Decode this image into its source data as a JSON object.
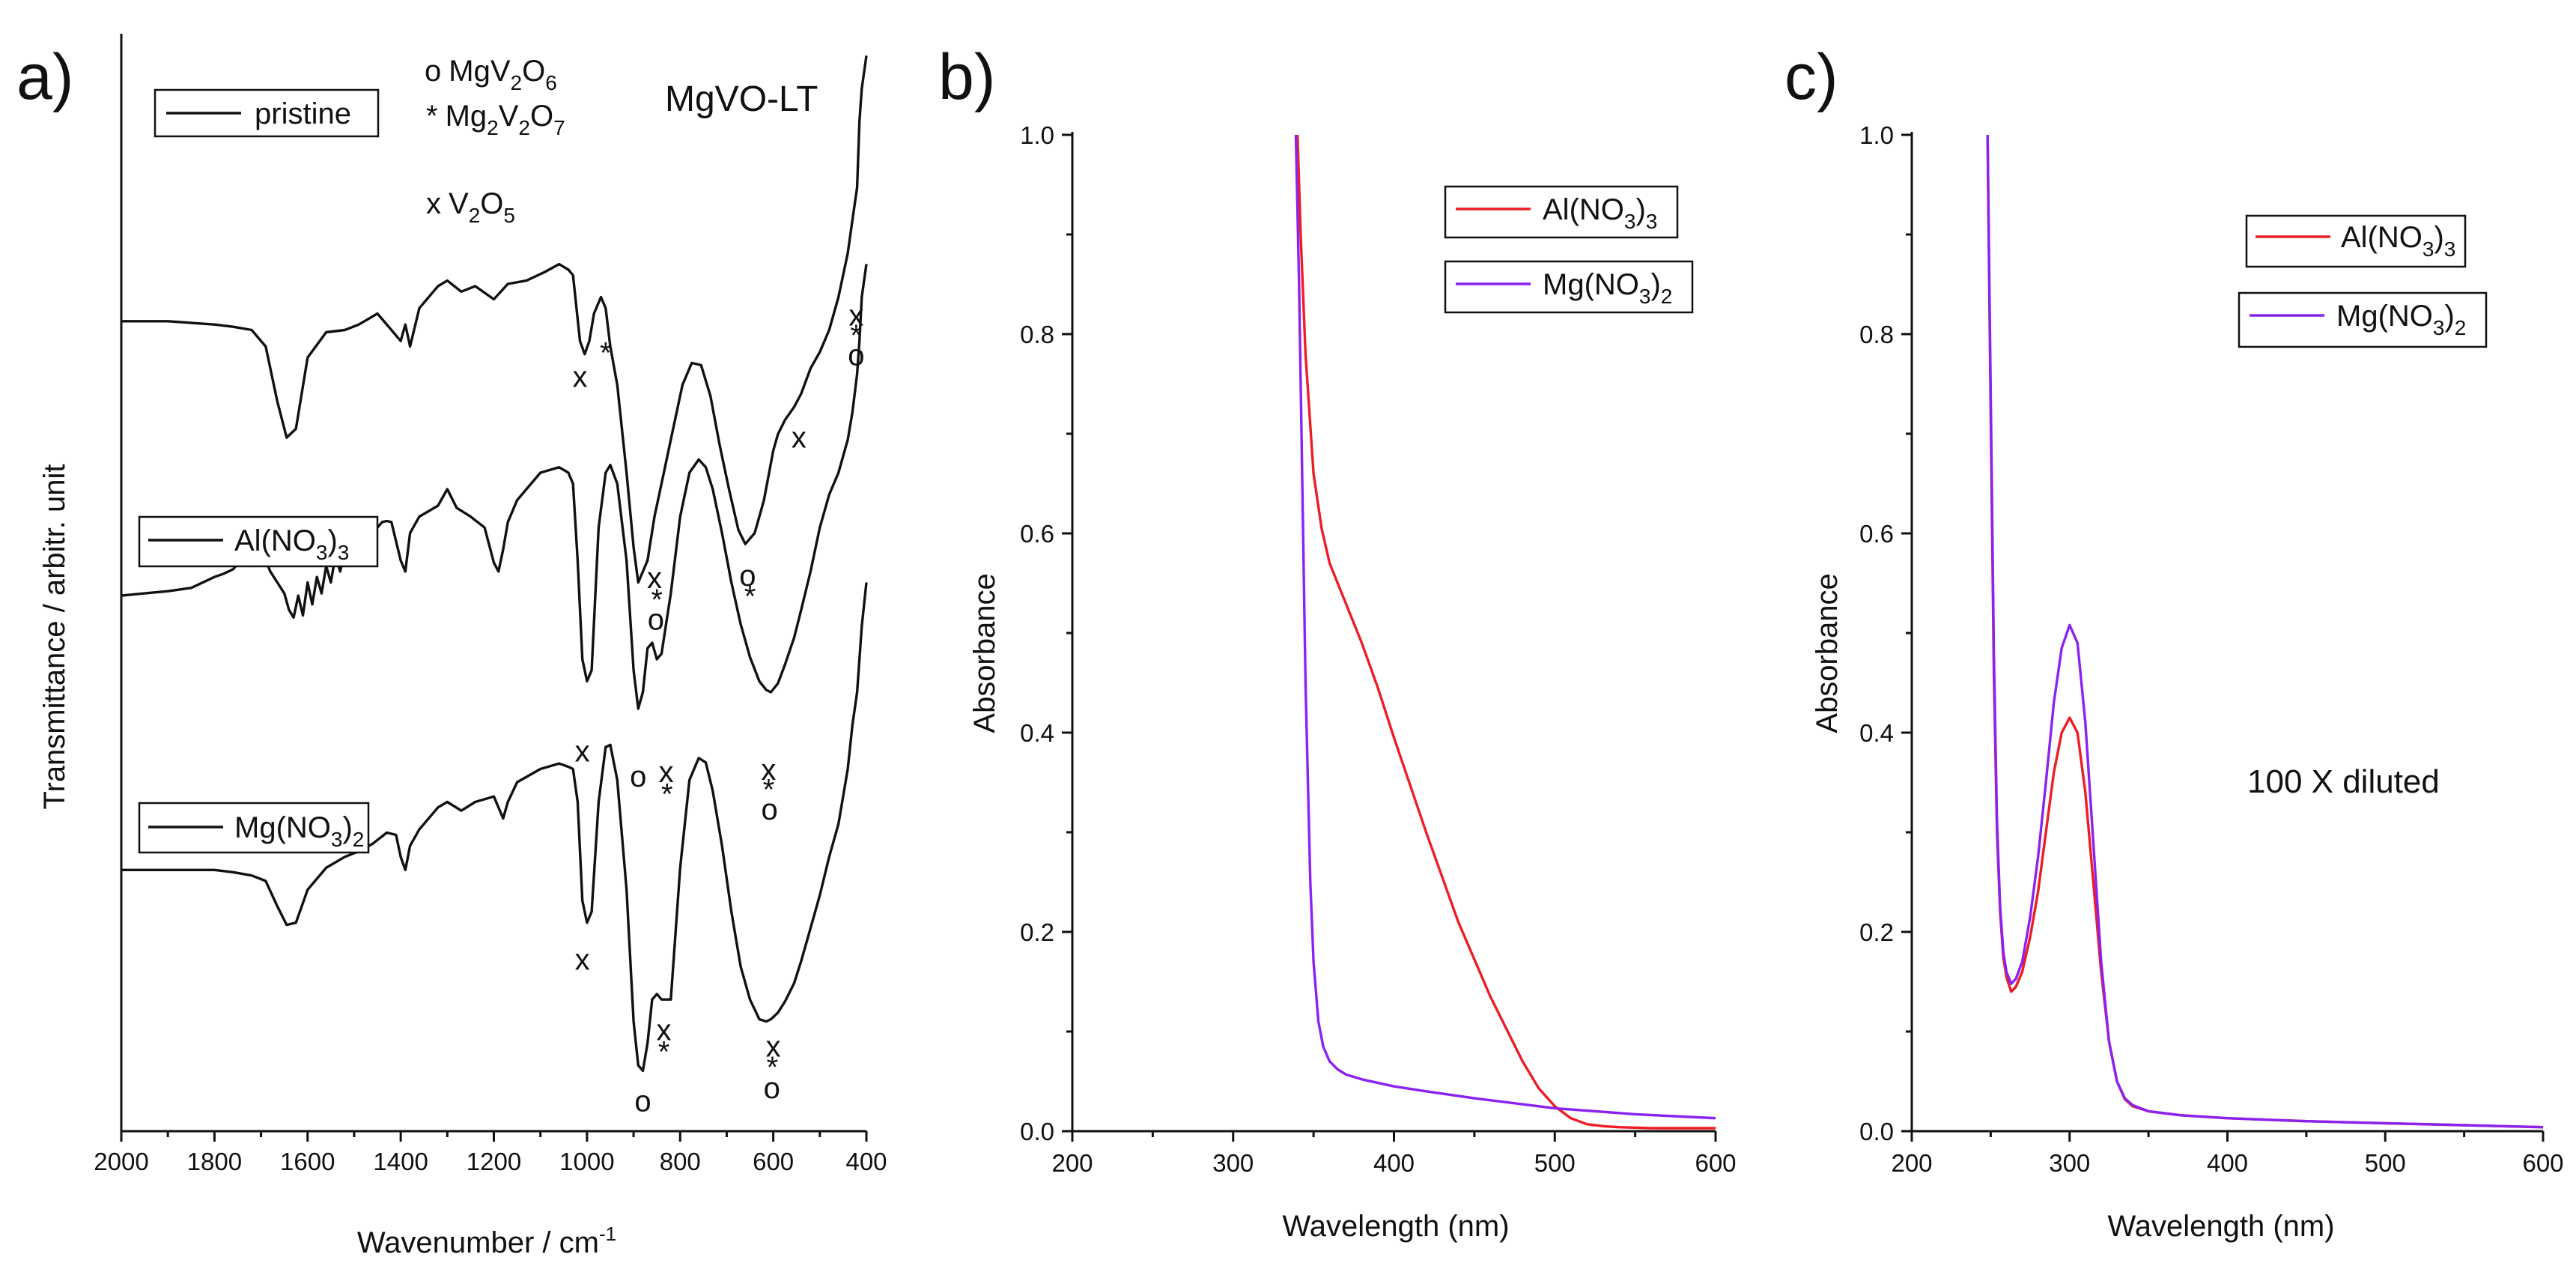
{
  "colors": {
    "red": "#ee1c25",
    "violet": "#8b22f0",
    "black": "#111111"
  },
  "chart_data": [
    {
      "panel": "a)",
      "type": "line",
      "title": "MgVO-LT",
      "xlabel": "Wavenumber / cm",
      "xlabel_sup": "-1",
      "ylabel": "Transmittance / arbitr. unit",
      "xlim": [
        2000,
        400
      ],
      "ylim": [
        0,
        1
      ],
      "xticks": [
        2000,
        1800,
        1600,
        1400,
        1200,
        1000,
        800,
        600,
        400
      ],
      "phase_legend": [
        {
          "symbol": "o",
          "label": "MgV2O6"
        },
        {
          "symbol": "*",
          "label": "Mg2V2O7"
        },
        {
          "symbol": "x",
          "label": "V2O5"
        }
      ],
      "series": [
        {
          "name": "pristine",
          "x": [
            2000,
            1900,
            1800,
            1760,
            1720,
            1690,
            1665,
            1645,
            1625,
            1600,
            1560,
            1520,
            1490,
            1450,
            1420,
            1400,
            1390,
            1380,
            1360,
            1320,
            1300,
            1270,
            1240,
            1200,
            1170,
            1130,
            1090,
            1060,
            1040,
            1030,
            1015,
            1005,
            995,
            985,
            970,
            960,
            950,
            935,
            915,
            900,
            890,
            880,
            870,
            855,
            835,
            815,
            795,
            775,
            755,
            735,
            715,
            695,
            675,
            660,
            640,
            620,
            600,
            590,
            575,
            555,
            540,
            520,
            500,
            480,
            460,
            440,
            430,
            420,
            415,
            410,
            400
          ],
          "y": [
            0.738,
            0.738,
            0.735,
            0.733,
            0.73,
            0.715,
            0.665,
            0.632,
            0.64,
            0.705,
            0.728,
            0.73,
            0.735,
            0.745,
            0.73,
            0.72,
            0.735,
            0.715,
            0.75,
            0.77,
            0.775,
            0.765,
            0.77,
            0.758,
            0.772,
            0.775,
            0.783,
            0.79,
            0.785,
            0.78,
            0.72,
            0.708,
            0.72,
            0.745,
            0.76,
            0.75,
            0.715,
            0.68,
            0.6,
            0.532,
            0.5,
            0.51,
            0.52,
            0.56,
            0.6,
            0.64,
            0.68,
            0.7,
            0.698,
            0.67,
            0.625,
            0.585,
            0.548,
            0.535,
            0.545,
            0.575,
            0.62,
            0.635,
            0.648,
            0.66,
            0.672,
            0.695,
            0.71,
            0.73,
            0.76,
            0.8,
            0.83,
            0.86,
            0.92,
            0.95,
            0.98
          ]
        },
        {
          "name": "Al(NO3)3",
          "x": [
            2000,
            1950,
            1900,
            1850,
            1800,
            1780,
            1760,
            1740,
            1720,
            1700,
            1680,
            1665,
            1650,
            1640,
            1630,
            1620,
            1610,
            1600,
            1590,
            1580,
            1570,
            1560,
            1550,
            1540,
            1530,
            1520,
            1510,
            1500,
            1490,
            1480,
            1470,
            1460,
            1450,
            1440,
            1430,
            1420,
            1400,
            1390,
            1380,
            1360,
            1320,
            1300,
            1280,
            1250,
            1220,
            1200,
            1190,
            1180,
            1170,
            1150,
            1100,
            1060,
            1040,
            1030,
            1020,
            1010,
            1000,
            990,
            975,
            960,
            950,
            935,
            915,
            900,
            890,
            880,
            870,
            860,
            850,
            840,
            820,
            800,
            780,
            760,
            745,
            730,
            710,
            690,
            670,
            650,
            630,
            615,
            605,
            590,
            575,
            555,
            540,
            520,
            500,
            480,
            460,
            440,
            430,
            420,
            415,
            410,
            400
          ],
          "y": [
            0.488,
            0.49,
            0.492,
            0.495,
            0.505,
            0.508,
            0.512,
            0.522,
            0.515,
            0.53,
            0.51,
            0.5,
            0.49,
            0.475,
            0.468,
            0.488,
            0.47,
            0.5,
            0.48,
            0.505,
            0.49,
            0.515,
            0.5,
            0.525,
            0.51,
            0.53,
            0.515,
            0.54,
            0.525,
            0.55,
            0.54,
            0.556,
            0.55,
            0.555,
            0.556,
            0.555,
            0.52,
            0.51,
            0.545,
            0.56,
            0.57,
            0.585,
            0.568,
            0.56,
            0.55,
            0.518,
            0.51,
            0.53,
            0.555,
            0.575,
            0.6,
            0.605,
            0.6,
            0.59,
            0.52,
            0.43,
            0.41,
            0.42,
            0.55,
            0.6,
            0.607,
            0.59,
            0.52,
            0.42,
            0.385,
            0.4,
            0.44,
            0.445,
            0.43,
            0.435,
            0.49,
            0.56,
            0.6,
            0.612,
            0.605,
            0.585,
            0.545,
            0.5,
            0.462,
            0.432,
            0.41,
            0.402,
            0.4,
            0.408,
            0.425,
            0.45,
            0.475,
            0.51,
            0.55,
            0.58,
            0.6,
            0.63,
            0.655,
            0.69,
            0.72,
            0.76,
            0.79
          ]
        },
        {
          "name": "Mg(NO3)2",
          "x": [
            2000,
            1900,
            1800,
            1760,
            1720,
            1690,
            1665,
            1645,
            1625,
            1600,
            1560,
            1520,
            1490,
            1460,
            1430,
            1410,
            1400,
            1390,
            1380,
            1360,
            1320,
            1300,
            1270,
            1240,
            1200,
            1180,
            1170,
            1150,
            1100,
            1060,
            1040,
            1030,
            1020,
            1010,
            1000,
            990,
            975,
            960,
            950,
            935,
            915,
            900,
            890,
            880,
            870,
            860,
            850,
            840,
            820,
            800,
            780,
            760,
            745,
            730,
            710,
            690,
            670,
            650,
            630,
            615,
            605,
            590,
            575,
            555,
            540,
            520,
            500,
            480,
            460,
            440,
            430,
            420,
            415,
            410,
            400
          ],
          "y": [
            0.238,
            0.238,
            0.238,
            0.236,
            0.233,
            0.228,
            0.205,
            0.188,
            0.19,
            0.22,
            0.24,
            0.25,
            0.255,
            0.262,
            0.272,
            0.27,
            0.25,
            0.238,
            0.26,
            0.275,
            0.295,
            0.3,
            0.292,
            0.3,
            0.305,
            0.285,
            0.3,
            0.318,
            0.33,
            0.335,
            0.332,
            0.33,
            0.3,
            0.21,
            0.19,
            0.2,
            0.3,
            0.35,
            0.352,
            0.32,
            0.22,
            0.1,
            0.06,
            0.055,
            0.08,
            0.12,
            0.125,
            0.12,
            0.12,
            0.24,
            0.32,
            0.34,
            0.336,
            0.31,
            0.26,
            0.2,
            0.15,
            0.12,
            0.102,
            0.1,
            0.102,
            0.108,
            0.118,
            0.135,
            0.155,
            0.185,
            0.215,
            0.25,
            0.28,
            0.33,
            0.37,
            0.4,
            0.43,
            0.46,
            0.5
          ]
        }
      ],
      "annotations": [
        {
          "text": "x",
          "x": 1015,
          "y": 0.678
        },
        {
          "text": "*",
          "x": 960,
          "y": 0.7
        },
        {
          "text": "x",
          "x": 855,
          "y": 0.495
        },
        {
          "text": "*",
          "x": 850,
          "y": 0.475
        },
        {
          "text": "o",
          "x": 852,
          "y": 0.457
        },
        {
          "text": "o",
          "x": 655,
          "y": 0.497
        },
        {
          "text": "*",
          "x": 650,
          "y": 0.478
        },
        {
          "text": "x",
          "x": 545,
          "y": 0.623
        },
        {
          "text": "x",
          "x": 422,
          "y": 0.734
        },
        {
          "text": "*",
          "x": 422,
          "y": 0.716
        },
        {
          "text": "o",
          "x": 422,
          "y": 0.698
        },
        {
          "text": "x",
          "x": 1010,
          "y": 0.337
        },
        {
          "text": "o",
          "x": 890,
          "y": 0.314
        },
        {
          "text": "x",
          "x": 830,
          "y": 0.318
        },
        {
          "text": "*",
          "x": 828,
          "y": 0.298
        },
        {
          "text": "x",
          "x": 610,
          "y": 0.32
        },
        {
          "text": "*",
          "x": 610,
          "y": 0.302
        },
        {
          "text": "o",
          "x": 608,
          "y": 0.284
        },
        {
          "text": "x",
          "x": 1010,
          "y": 0.147
        },
        {
          "text": "x",
          "x": 835,
          "y": 0.083
        },
        {
          "text": "*",
          "x": 835,
          "y": 0.063
        },
        {
          "text": "o",
          "x": 880,
          "y": 0.018
        },
        {
          "text": "x",
          "x": 600,
          "y": 0.068
        },
        {
          "text": "*",
          "x": 602,
          "y": 0.049
        },
        {
          "text": "o",
          "x": 603,
          "y": 0.03
        }
      ]
    },
    {
      "panel": "b)",
      "type": "line",
      "xlabel": "Wavelength (nm)",
      "ylabel": "Absorbance",
      "xlim": [
        200,
        600
      ],
      "ylim": [
        0,
        1
      ],
      "xticks": [
        200,
        300,
        400,
        500,
        600
      ],
      "yticks": [
        0.0,
        0.2,
        0.4,
        0.6,
        0.8,
        1.0
      ],
      "series": [
        {
          "name": "Al(NO3)3",
          "color": "#ee1c25",
          "x": [
            340,
            342,
            345,
            350,
            355,
            360,
            370,
            380,
            390,
            400,
            420,
            440,
            460,
            480,
            490,
            500,
            510,
            520,
            530,
            540,
            560,
            580,
            600
          ],
          "y": [
            1.0,
            0.9,
            0.78,
            0.66,
            0.605,
            0.57,
            0.53,
            0.49,
            0.445,
            0.395,
            0.3,
            0.21,
            0.135,
            0.07,
            0.043,
            0.025,
            0.013,
            0.007,
            0.005,
            0.004,
            0.003,
            0.003,
            0.003
          ]
        },
        {
          "name": "Mg(NO3)2",
          "color": "#8b22f0",
          "x": [
            339,
            341,
            343,
            345,
            348,
            350,
            353,
            356,
            360,
            365,
            370,
            380,
            400,
            420,
            450,
            480,
            500,
            550,
            600
          ],
          "y": [
            1.0,
            0.85,
            0.65,
            0.45,
            0.25,
            0.17,
            0.11,
            0.085,
            0.07,
            0.062,
            0.057,
            0.052,
            0.045,
            0.04,
            0.033,
            0.027,
            0.023,
            0.017,
            0.013
          ]
        }
      ]
    },
    {
      "panel": "c)",
      "type": "line",
      "xlabel": "Wavelength (nm)",
      "ylabel": "Absorbance",
      "annotation_text": "100 X diluted",
      "xlim": [
        200,
        600
      ],
      "ylim": [
        0,
        1
      ],
      "xticks": [
        200,
        300,
        400,
        500,
        600
      ],
      "yticks": [
        0.0,
        0.2,
        0.4,
        0.6,
        0.8,
        1.0
      ],
      "series": [
        {
          "name": "Al(NO3)3",
          "color": "#ee1c25",
          "x": [
            248,
            250,
            252,
            254,
            256,
            258,
            260,
            263,
            266,
            270,
            275,
            280,
            285,
            290,
            295,
            300,
            305,
            310,
            315,
            320,
            325,
            330,
            335,
            340,
            350,
            370,
            400,
            450,
            500,
            550,
            600
          ],
          "y": [
            1.0,
            0.72,
            0.46,
            0.3,
            0.22,
            0.175,
            0.155,
            0.14,
            0.145,
            0.16,
            0.195,
            0.24,
            0.3,
            0.36,
            0.4,
            0.415,
            0.4,
            0.34,
            0.25,
            0.16,
            0.09,
            0.05,
            0.032,
            0.025,
            0.02,
            0.016,
            0.013,
            0.01,
            0.008,
            0.006,
            0.004
          ]
        },
        {
          "name": "Mg(NO3)2",
          "color": "#8b22f0",
          "x": [
            248,
            250,
            252,
            254,
            256,
            258,
            260,
            263,
            266,
            270,
            275,
            280,
            285,
            290,
            295,
            300,
            305,
            310,
            315,
            320,
            325,
            330,
            335,
            340,
            350,
            370,
            400,
            450,
            500,
            550,
            600
          ],
          "y": [
            1.0,
            0.74,
            0.48,
            0.31,
            0.225,
            0.18,
            0.16,
            0.148,
            0.153,
            0.17,
            0.215,
            0.275,
            0.35,
            0.43,
            0.485,
            0.508,
            0.49,
            0.41,
            0.29,
            0.17,
            0.09,
            0.05,
            0.033,
            0.026,
            0.02,
            0.016,
            0.013,
            0.01,
            0.008,
            0.006,
            0.004
          ]
        }
      ]
    }
  ]
}
